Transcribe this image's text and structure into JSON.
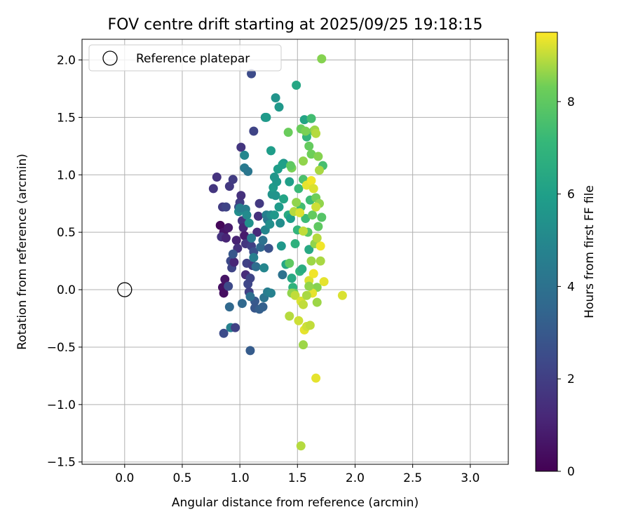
{
  "chart_data": {
    "type": "scatter",
    "title": "FOV centre drift starting at 2025/09/25 19:18:15",
    "xlabel": "Angular distance from reference (arcmin)",
    "ylabel": "Rotation from reference (arcmin)",
    "xlim": [
      -0.37,
      3.33
    ],
    "ylim": [
      -1.52,
      2.18
    ],
    "x_ticks": [
      0.0,
      0.5,
      1.0,
      1.5,
      2.0,
      2.5,
      3.0
    ],
    "y_ticks": [
      -1.5,
      -1.0,
      -0.5,
      0.0,
      0.5,
      1.0,
      1.5,
      2.0
    ],
    "x_tick_labels": [
      "0.0",
      "0.5",
      "1.0",
      "1.5",
      "2.0",
      "2.5",
      "3.0"
    ],
    "y_tick_labels": [
      "−1.5",
      "−1.0",
      "−0.5",
      "0.0",
      "0.5",
      "1.0",
      "1.5",
      "2.0"
    ],
    "grid": true,
    "legend": {
      "position": "top-left",
      "label": "Reference platepar"
    },
    "reference_point": {
      "x": 0.0,
      "y": 0.0
    },
    "colorbar": {
      "label": "Hours from first FF file",
      "min": 0,
      "max": 9.5,
      "ticks": [
        0,
        2,
        4,
        6,
        8
      ],
      "tick_labels": [
        "0",
        "2",
        "4",
        "6",
        "8"
      ],
      "colormap": "viridis"
    },
    "points": [
      [
        0.8,
        0.98,
        1.6
      ],
      [
        0.77,
        0.88,
        1.7
      ],
      [
        0.85,
        0.72,
        1.9
      ],
      [
        0.88,
        0.72,
        2.2
      ],
      [
        0.91,
        0.9,
        1.8
      ],
      [
        0.94,
        0.96,
        1.9
      ],
      [
        0.83,
        0.56,
        0.2
      ],
      [
        0.86,
        0.5,
        0.6
      ],
      [
        0.84,
        0.46,
        1.6
      ],
      [
        0.88,
        0.45,
        1.1
      ],
      [
        0.9,
        0.54,
        0.8
      ],
      [
        0.85,
        0.02,
        0.5
      ],
      [
        0.86,
        -0.03,
        0.4
      ],
      [
        0.87,
        0.09,
        0.6
      ],
      [
        0.92,
        0.25,
        2.4
      ],
      [
        0.93,
        0.19,
        2.2
      ],
      [
        0.95,
        0.24,
        1.1
      ],
      [
        0.97,
        0.43,
        1.0
      ],
      [
        0.98,
        0.36,
        1.5
      ],
      [
        0.99,
        0.72,
        2.6
      ],
      [
        1.0,
        0.76,
        2.0
      ],
      [
        1.01,
        0.82,
        1.5
      ],
      [
        1.02,
        0.6,
        1.6
      ],
      [
        1.03,
        0.54,
        1.2
      ],
      [
        1.04,
        0.47,
        0.8
      ],
      [
        1.05,
        0.4,
        1.7
      ],
      [
        1.05,
        0.13,
        1.3
      ],
      [
        1.06,
        0.23,
        2.1
      ],
      [
        1.07,
        0.05,
        2.3
      ],
      [
        1.08,
        -0.02,
        2.1
      ],
      [
        1.09,
        0.1,
        2.2
      ],
      [
        1.1,
        0.38,
        2.0
      ],
      [
        1.11,
        0.21,
        1.9
      ],
      [
        1.12,
        0.33,
        2.6
      ],
      [
        1.13,
        -0.1,
        3.0
      ],
      [
        1.15,
        0.5,
        1.3
      ],
      [
        1.16,
        0.64,
        1.5
      ],
      [
        1.17,
        0.75,
        1.8
      ],
      [
        0.99,
        0.68,
        5.2
      ],
      [
        1.0,
        0.71,
        4.6
      ],
      [
        0.94,
        0.31,
        2.9
      ],
      [
        0.9,
        0.03,
        2.4
      ],
      [
        0.91,
        -0.15,
        3.6
      ],
      [
        0.92,
        -0.33,
        4.7
      ],
      [
        0.96,
        -0.33,
        2.1
      ],
      [
        0.86,
        -0.38,
        2.5
      ],
      [
        1.09,
        -0.53,
        3.1
      ],
      [
        1.02,
        -0.12,
        3.6
      ],
      [
        1.09,
        -0.06,
        3.9
      ],
      [
        1.13,
        -0.16,
        2.9
      ],
      [
        1.17,
        -0.17,
        3.2
      ],
      [
        1.2,
        -0.15,
        3.3
      ],
      [
        1.21,
        -0.07,
        4.1
      ],
      [
        1.24,
        -0.02,
        4.5
      ],
      [
        1.27,
        -0.03,
        4.7
      ],
      [
        1.1,
        1.88,
        2.5
      ],
      [
        1.01,
        1.24,
        1.7
      ],
      [
        1.12,
        1.38,
        2.2
      ],
      [
        1.04,
        1.17,
        4.9
      ],
      [
        1.04,
        1.06,
        4.4
      ],
      [
        1.07,
        1.03,
        4.2
      ],
      [
        1.05,
        0.7,
        4.6
      ],
      [
        1.06,
        0.65,
        5.1
      ],
      [
        1.08,
        0.58,
        5.4
      ],
      [
        1.1,
        0.45,
        4.4
      ],
      [
        1.12,
        0.28,
        4.6
      ],
      [
        1.14,
        0.2,
        3.8
      ],
      [
        1.18,
        0.37,
        3.6
      ],
      [
        1.2,
        0.43,
        4.0
      ],
      [
        1.21,
        0.19,
        4.9
      ],
      [
        1.22,
        0.52,
        4.9
      ],
      [
        1.23,
        0.65,
        4.6
      ],
      [
        1.24,
        0.61,
        4.4
      ],
      [
        1.25,
        0.36,
        2.7
      ],
      [
        1.26,
        0.57,
        5.3
      ],
      [
        1.27,
        0.65,
        5.1
      ],
      [
        1.28,
        0.83,
        5.5
      ],
      [
        1.29,
        0.89,
        5.8
      ],
      [
        1.3,
        0.65,
        5.7
      ],
      [
        1.31,
        0.82,
        5.5
      ],
      [
        1.32,
        0.94,
        5.7
      ],
      [
        1.33,
        1.05,
        5.9
      ],
      [
        1.34,
        0.72,
        5.8
      ],
      [
        1.35,
        0.58,
        5.2
      ],
      [
        1.36,
        0.38,
        5.7
      ],
      [
        1.37,
        0.13,
        4.0
      ],
      [
        1.38,
        1.1,
        5.6
      ],
      [
        1.22,
        1.5,
        5.5
      ],
      [
        1.23,
        1.5,
        5.8
      ],
      [
        1.27,
        1.21,
        5.9
      ],
      [
        1.3,
        0.98,
        5.6
      ],
      [
        1.31,
        1.67,
        5.5
      ],
      [
        1.34,
        1.59,
        5.7
      ],
      [
        1.37,
        1.09,
        6.0
      ],
      [
        1.38,
        0.79,
        6.2
      ],
      [
        1.4,
        0.22,
        6.3
      ],
      [
        1.42,
        0.65,
        6.5
      ],
      [
        1.43,
        0.94,
        6.0
      ],
      [
        1.44,
        0.62,
        5.9
      ],
      [
        1.45,
        0.1,
        6.4
      ],
      [
        1.46,
        0.02,
        6.9
      ],
      [
        1.47,
        -0.03,
        8.3
      ],
      [
        1.48,
        0.4,
        6.8
      ],
      [
        1.49,
        1.78,
        6.3
      ],
      [
        1.5,
        0.52,
        7.0
      ],
      [
        1.51,
        0.88,
        7.2
      ],
      [
        1.52,
        0.16,
        7.0
      ],
      [
        1.53,
        0.72,
        7.4
      ],
      [
        1.54,
        0.18,
        6.6
      ],
      [
        1.55,
        0.96,
        7.6
      ],
      [
        1.56,
        1.48,
        6.2
      ],
      [
        1.57,
        0.62,
        7.3
      ],
      [
        1.58,
        1.33,
        7.0
      ],
      [
        1.59,
        0.5,
        7.9
      ],
      [
        1.6,
        0.35,
        6.4
      ],
      [
        1.61,
        0.78,
        7.3
      ],
      [
        1.62,
        1.49,
        7.4
      ],
      [
        1.63,
        0.65,
        8.1
      ],
      [
        1.64,
        1.38,
        7.9
      ],
      [
        1.65,
        0.4,
        8.6
      ],
      [
        1.66,
        0.8,
        8.3
      ],
      [
        1.67,
        0.02,
        8.5
      ],
      [
        1.68,
        0.55,
        8.0
      ],
      [
        1.69,
        0.75,
        8.6
      ],
      [
        1.7,
        0.25,
        8.8
      ],
      [
        1.71,
        0.63,
        7.8
      ],
      [
        1.72,
        1.08,
        7.5
      ],
      [
        1.71,
        2.01,
        8.5
      ],
      [
        1.42,
        1.37,
        8.2
      ],
      [
        1.45,
        1.06,
        8.4
      ],
      [
        1.44,
        1.08,
        8.0
      ],
      [
        1.49,
        0.76,
        8.6
      ],
      [
        1.47,
        0.68,
        8.9
      ],
      [
        1.53,
        1.4,
        8.2
      ],
      [
        1.55,
        1.12,
        8.6
      ],
      [
        1.57,
        1.38,
        8.4
      ],
      [
        1.6,
        1.25,
        8.1
      ],
      [
        1.62,
        1.18,
        8.3
      ],
      [
        1.65,
        1.39,
        8.7
      ],
      [
        1.66,
        1.36,
        8.9
      ],
      [
        1.68,
        1.16,
        8.5
      ],
      [
        1.69,
        1.04,
        8.8
      ],
      [
        1.43,
        0.23,
        8.0
      ],
      [
        1.45,
        -0.03,
        8.6
      ],
      [
        1.48,
        -0.05,
        9.0
      ],
      [
        1.51,
        -0.27,
        9.1
      ],
      [
        1.53,
        -0.1,
        9.2
      ],
      [
        1.55,
        -0.13,
        9.0
      ],
      [
        1.56,
        -0.35,
        9.3
      ],
      [
        1.58,
        -0.32,
        9.1
      ],
      [
        1.6,
        0.08,
        9.2
      ],
      [
        1.61,
        -0.31,
        9.0
      ],
      [
        1.63,
        -0.03,
        9.3
      ],
      [
        1.64,
        0.14,
        9.4
      ],
      [
        1.66,
        -0.77,
        9.3
      ],
      [
        1.67,
        -0.11,
        8.7
      ],
      [
        1.7,
        0.38,
        9.4
      ],
      [
        1.73,
        0.07,
        9.3
      ],
      [
        1.89,
        -0.05,
        9.2
      ],
      [
        1.43,
        -0.23,
        8.9
      ],
      [
        1.55,
        -0.48,
        8.7
      ],
      [
        1.53,
        -1.36,
        8.9
      ],
      [
        1.52,
        0.67,
        9.2
      ],
      [
        1.58,
        0.91,
        9.3
      ],
      [
        1.62,
        0.95,
        9.4
      ],
      [
        1.64,
        0.88,
        9.2
      ],
      [
        1.66,
        0.72,
        9.1
      ],
      [
        1.55,
        0.51,
        9.0
      ],
      [
        1.67,
        0.45,
        8.9
      ],
      [
        1.62,
        0.25,
        8.7
      ],
      [
        1.6,
        0.03,
        8.6
      ],
      [
        1.58,
        -0.05,
        8.8
      ]
    ]
  }
}
